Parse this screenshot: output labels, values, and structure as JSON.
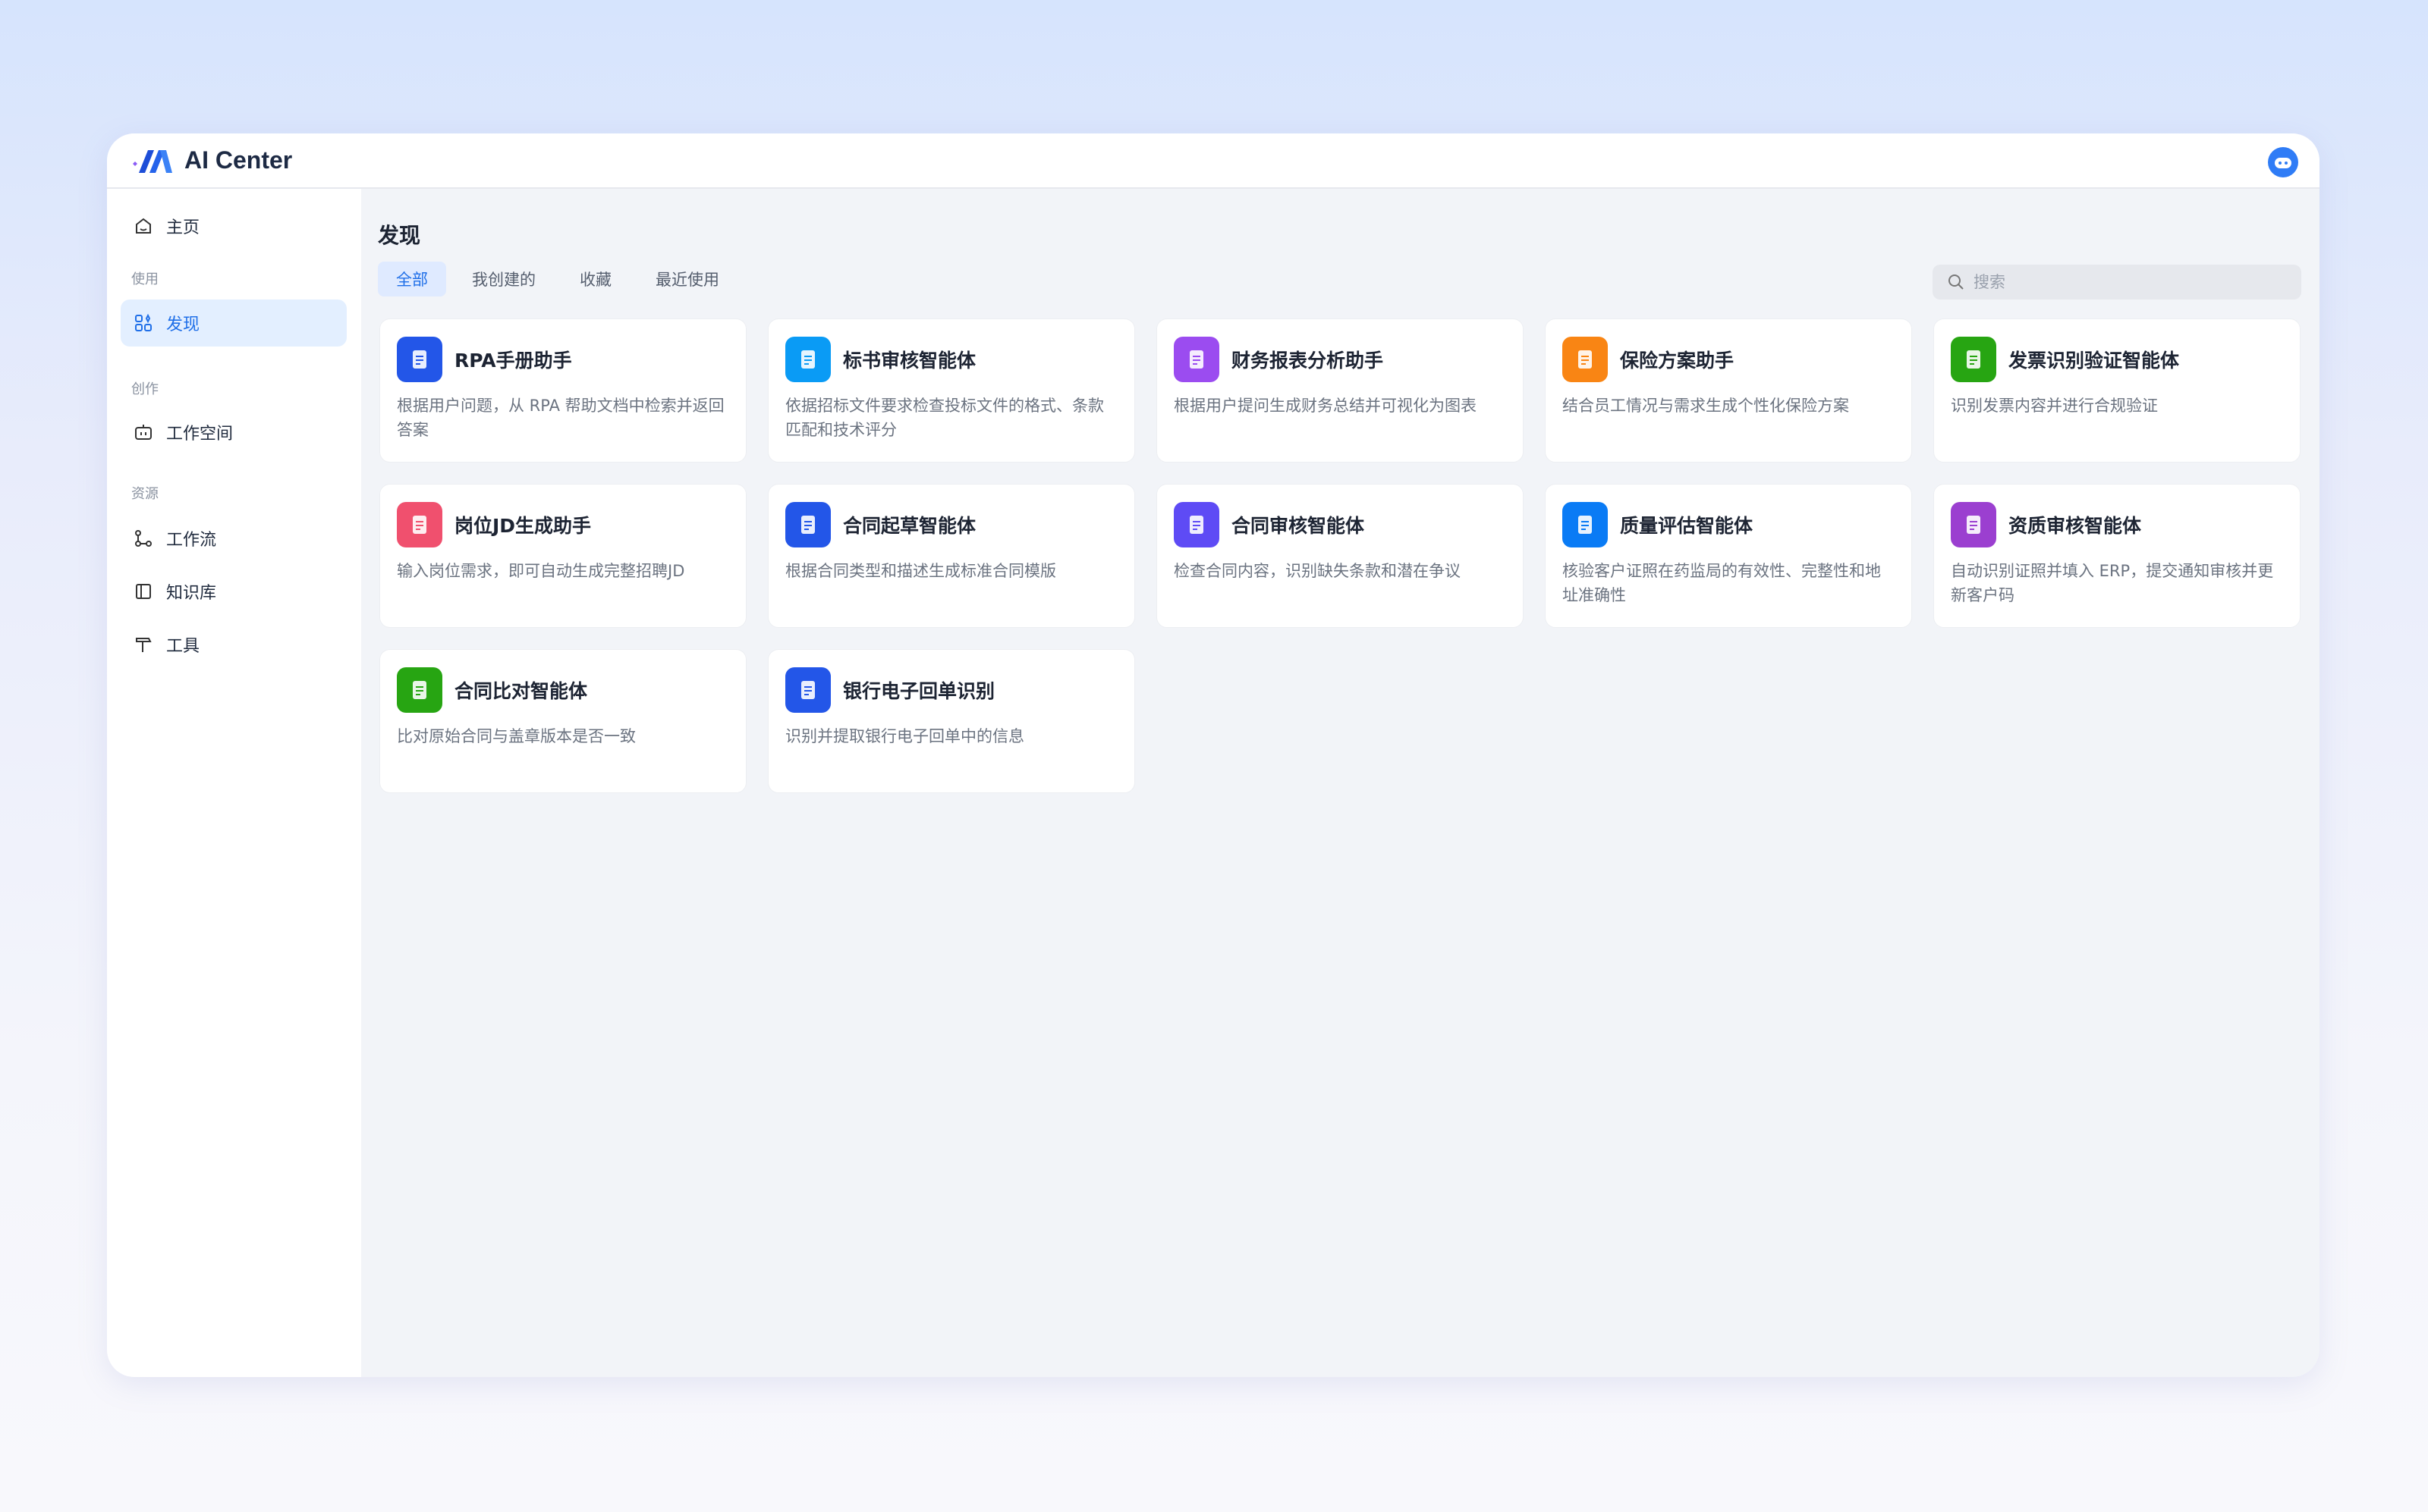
{
  "app": {
    "title": "AI Center"
  },
  "sidebar": {
    "home": "主页",
    "sections": [
      "使用",
      "创作",
      "资源"
    ],
    "discover": "发现",
    "workspace": "工作空间",
    "workflow": "工作流",
    "knowledge": "知识库",
    "tools": "工具"
  },
  "main": {
    "title": "发现",
    "tabs": [
      "全部",
      "我创建的",
      "收藏",
      "最近使用"
    ],
    "search_placeholder": "搜索",
    "cards": [
      {
        "name": "RPA手册助手",
        "desc": "根据用户问题，从 RPA 帮助文档中检索并返回答案",
        "icon": "rpa-book-icon",
        "color": "#2356e8"
      },
      {
        "name": "标书审核智能体",
        "desc": "依据招标文件要求检查投标文件的格式、条款匹配和技术评分",
        "icon": "stamp-icon",
        "color": "#0a9bf5"
      },
      {
        "name": "财务报表分析助手",
        "desc": "根据用户提问生成财务总结并可视化为图表",
        "icon": "pie-chart-icon",
        "color": "#9b4cf0"
      },
      {
        "name": "保险方案助手",
        "desc": "结合员工情况与需求生成个性化保险方案",
        "icon": "document-icon",
        "color": "#f98514"
      },
      {
        "name": "发票识别验证智能体",
        "desc": "识别发票内容并进行合规验证",
        "icon": "scan-icon",
        "color": "#27a512"
      },
      {
        "name": "岗位JD生成助手",
        "desc": "输入岗位需求，即可自动生成完整招聘JD",
        "icon": "id-card-icon",
        "color": "#f0506e"
      },
      {
        "name": "合同起草智能体",
        "desc": "根据合同类型和描述生成标准合同模版",
        "icon": "quill-pen-icon",
        "color": "#2356e8"
      },
      {
        "name": "合同审核智能体",
        "desc": "检查合同内容，识别缺失条款和潜在争议",
        "icon": "contract-star-icon",
        "color": "#5e4bf5"
      },
      {
        "name": "质量评估智能体",
        "desc": "核验客户证照在药监局的有效性、完整性和地址准确性",
        "icon": "shield-icon",
        "color": "#0a7bf5"
      },
      {
        "name": "资质审核智能体",
        "desc": "自动识别证照并填入 ERP，提交通知审核并更新客户码",
        "icon": "badge-icon",
        "color": "#9b3fd0"
      },
      {
        "name": "合同比对智能体",
        "desc": "比对原始合同与盖章版本是否一致",
        "icon": "compare-book-icon",
        "color": "#27a512"
      },
      {
        "name": "银行电子回单识别",
        "desc": "识别并提取银行电子回单中的信息",
        "icon": "receipt-icon",
        "color": "#2356e8"
      }
    ]
  }
}
